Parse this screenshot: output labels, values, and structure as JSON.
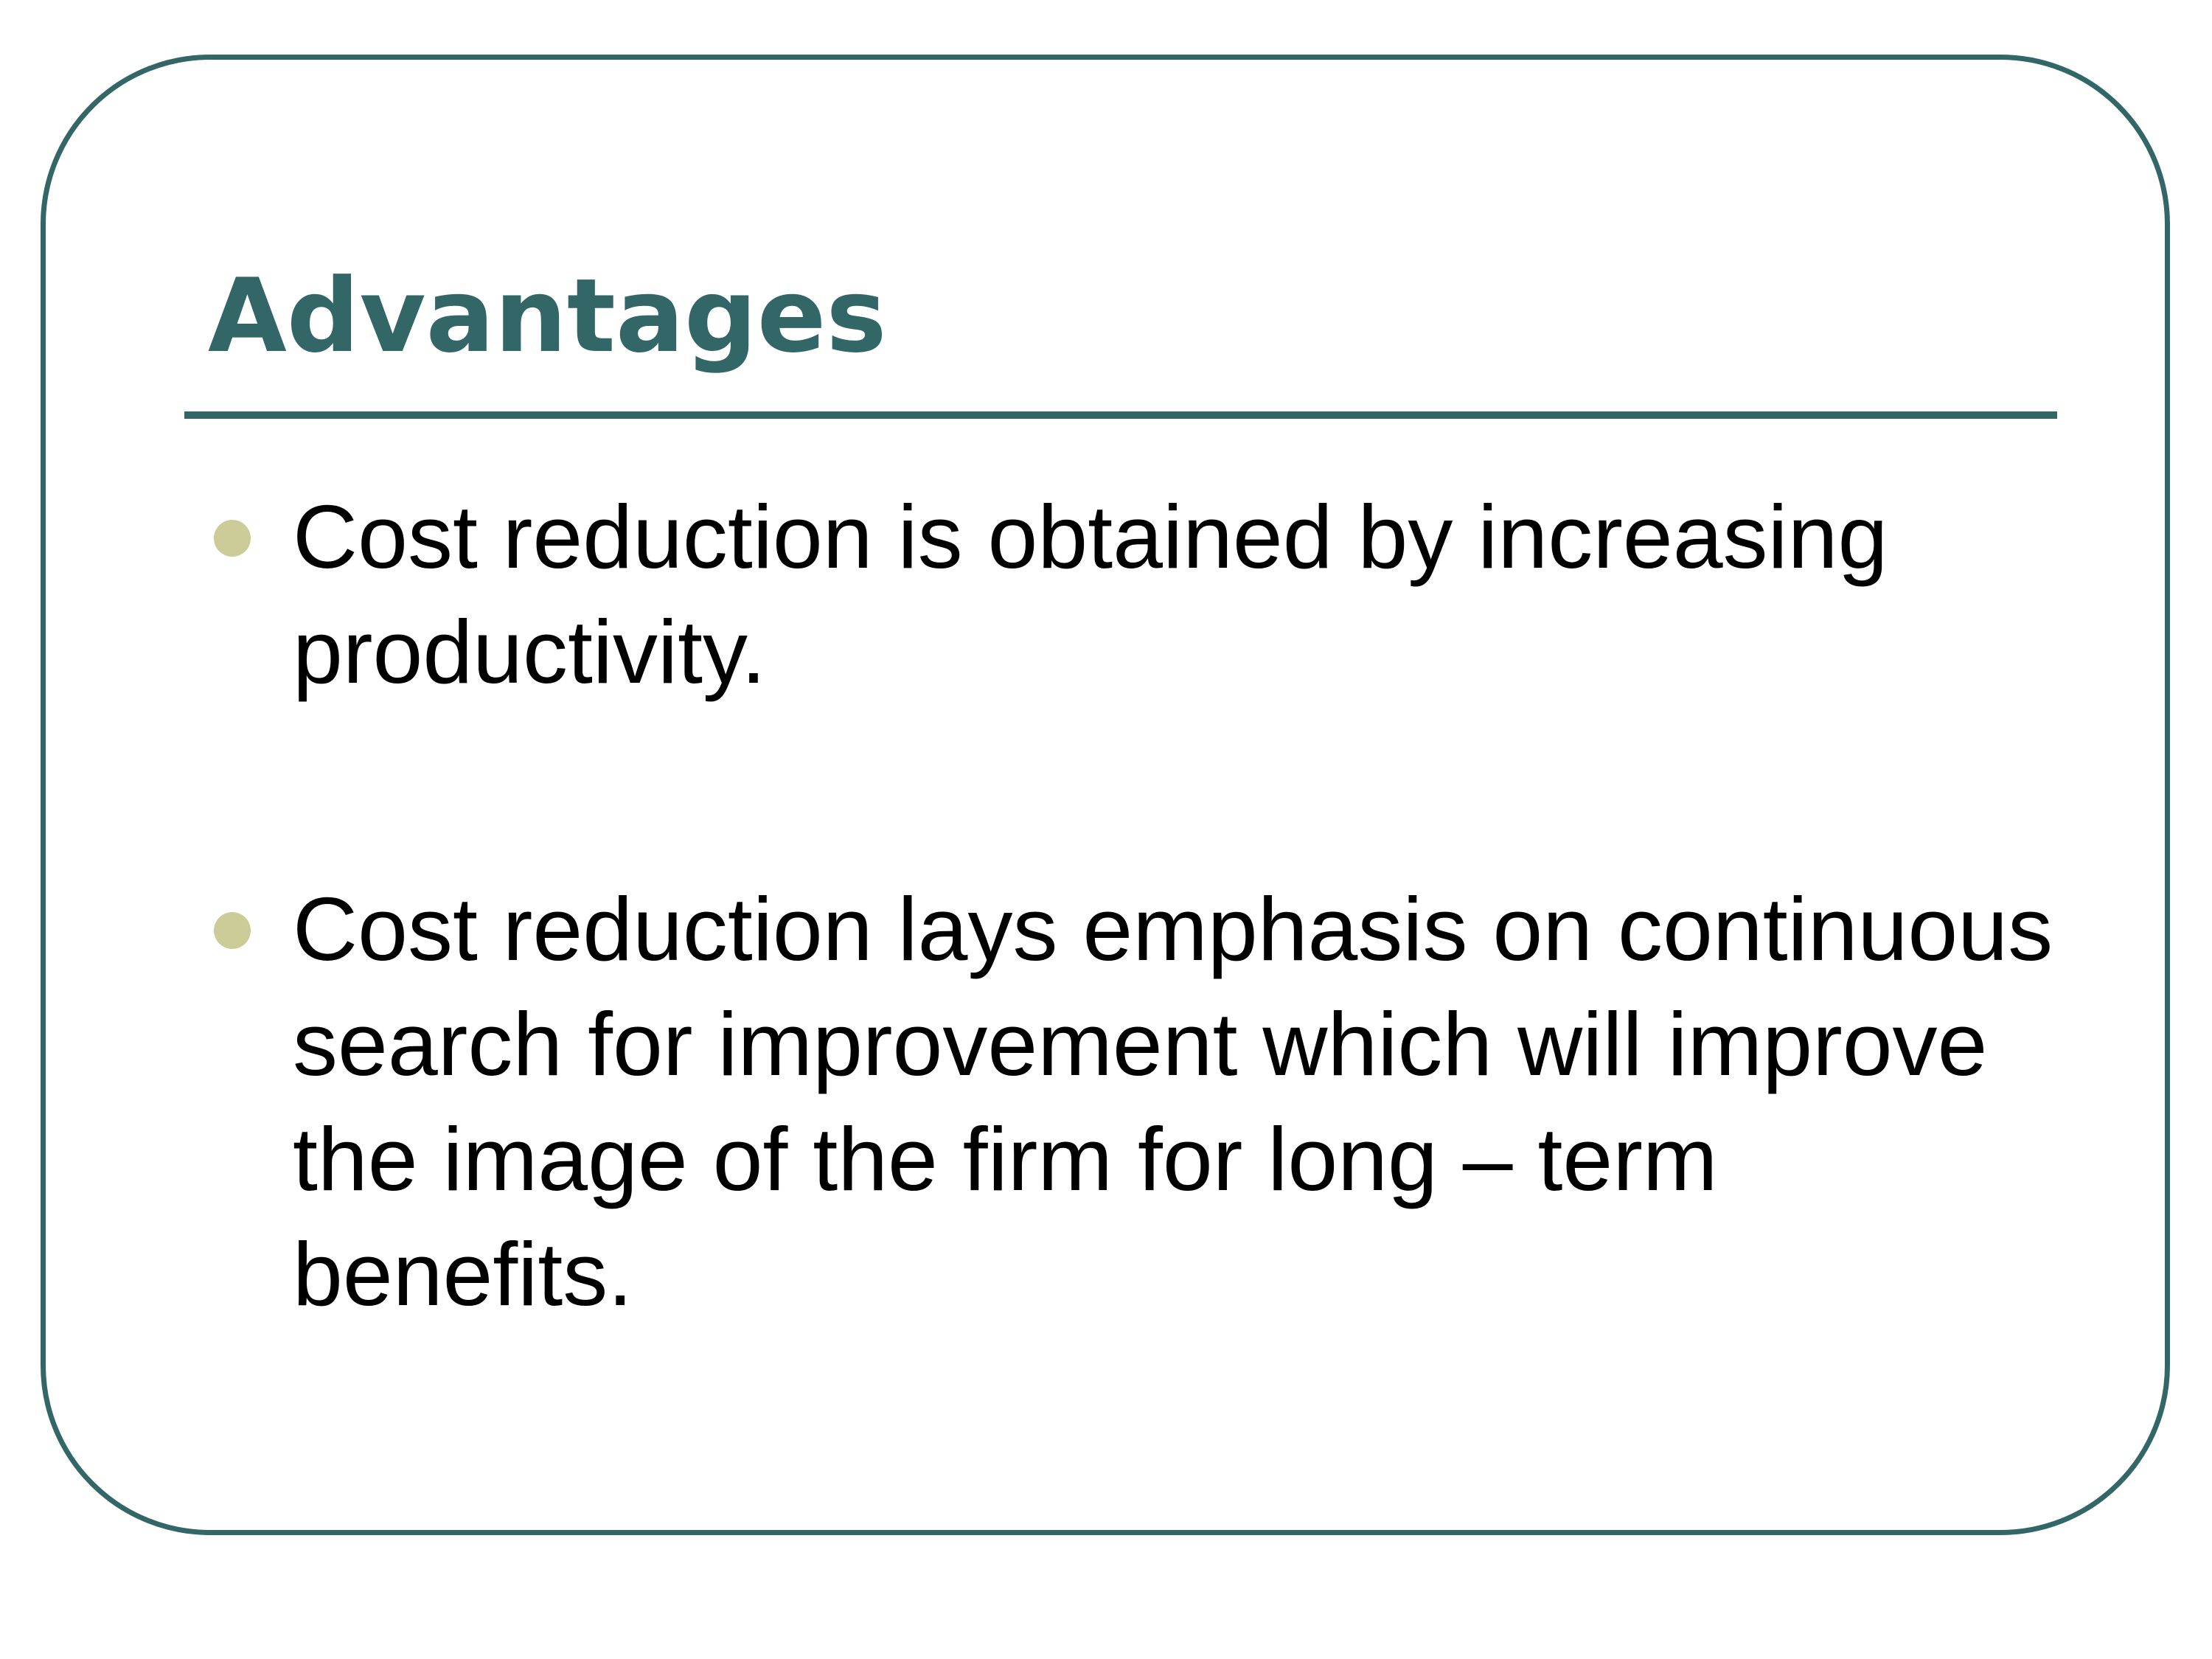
{
  "slide": {
    "title": "Advantages",
    "colors": {
      "accent": "#336666",
      "bullet": "#cccc99",
      "text": "#000000",
      "background": "#ffffff"
    },
    "bullets": [
      {
        "text": "Cost reduction is obtained by increasing productivity."
      },
      {
        "text": "Cost reduction lays emphasis on continuous search for improvement which will improve the image of the firm for long – term benefits."
      }
    ]
  }
}
